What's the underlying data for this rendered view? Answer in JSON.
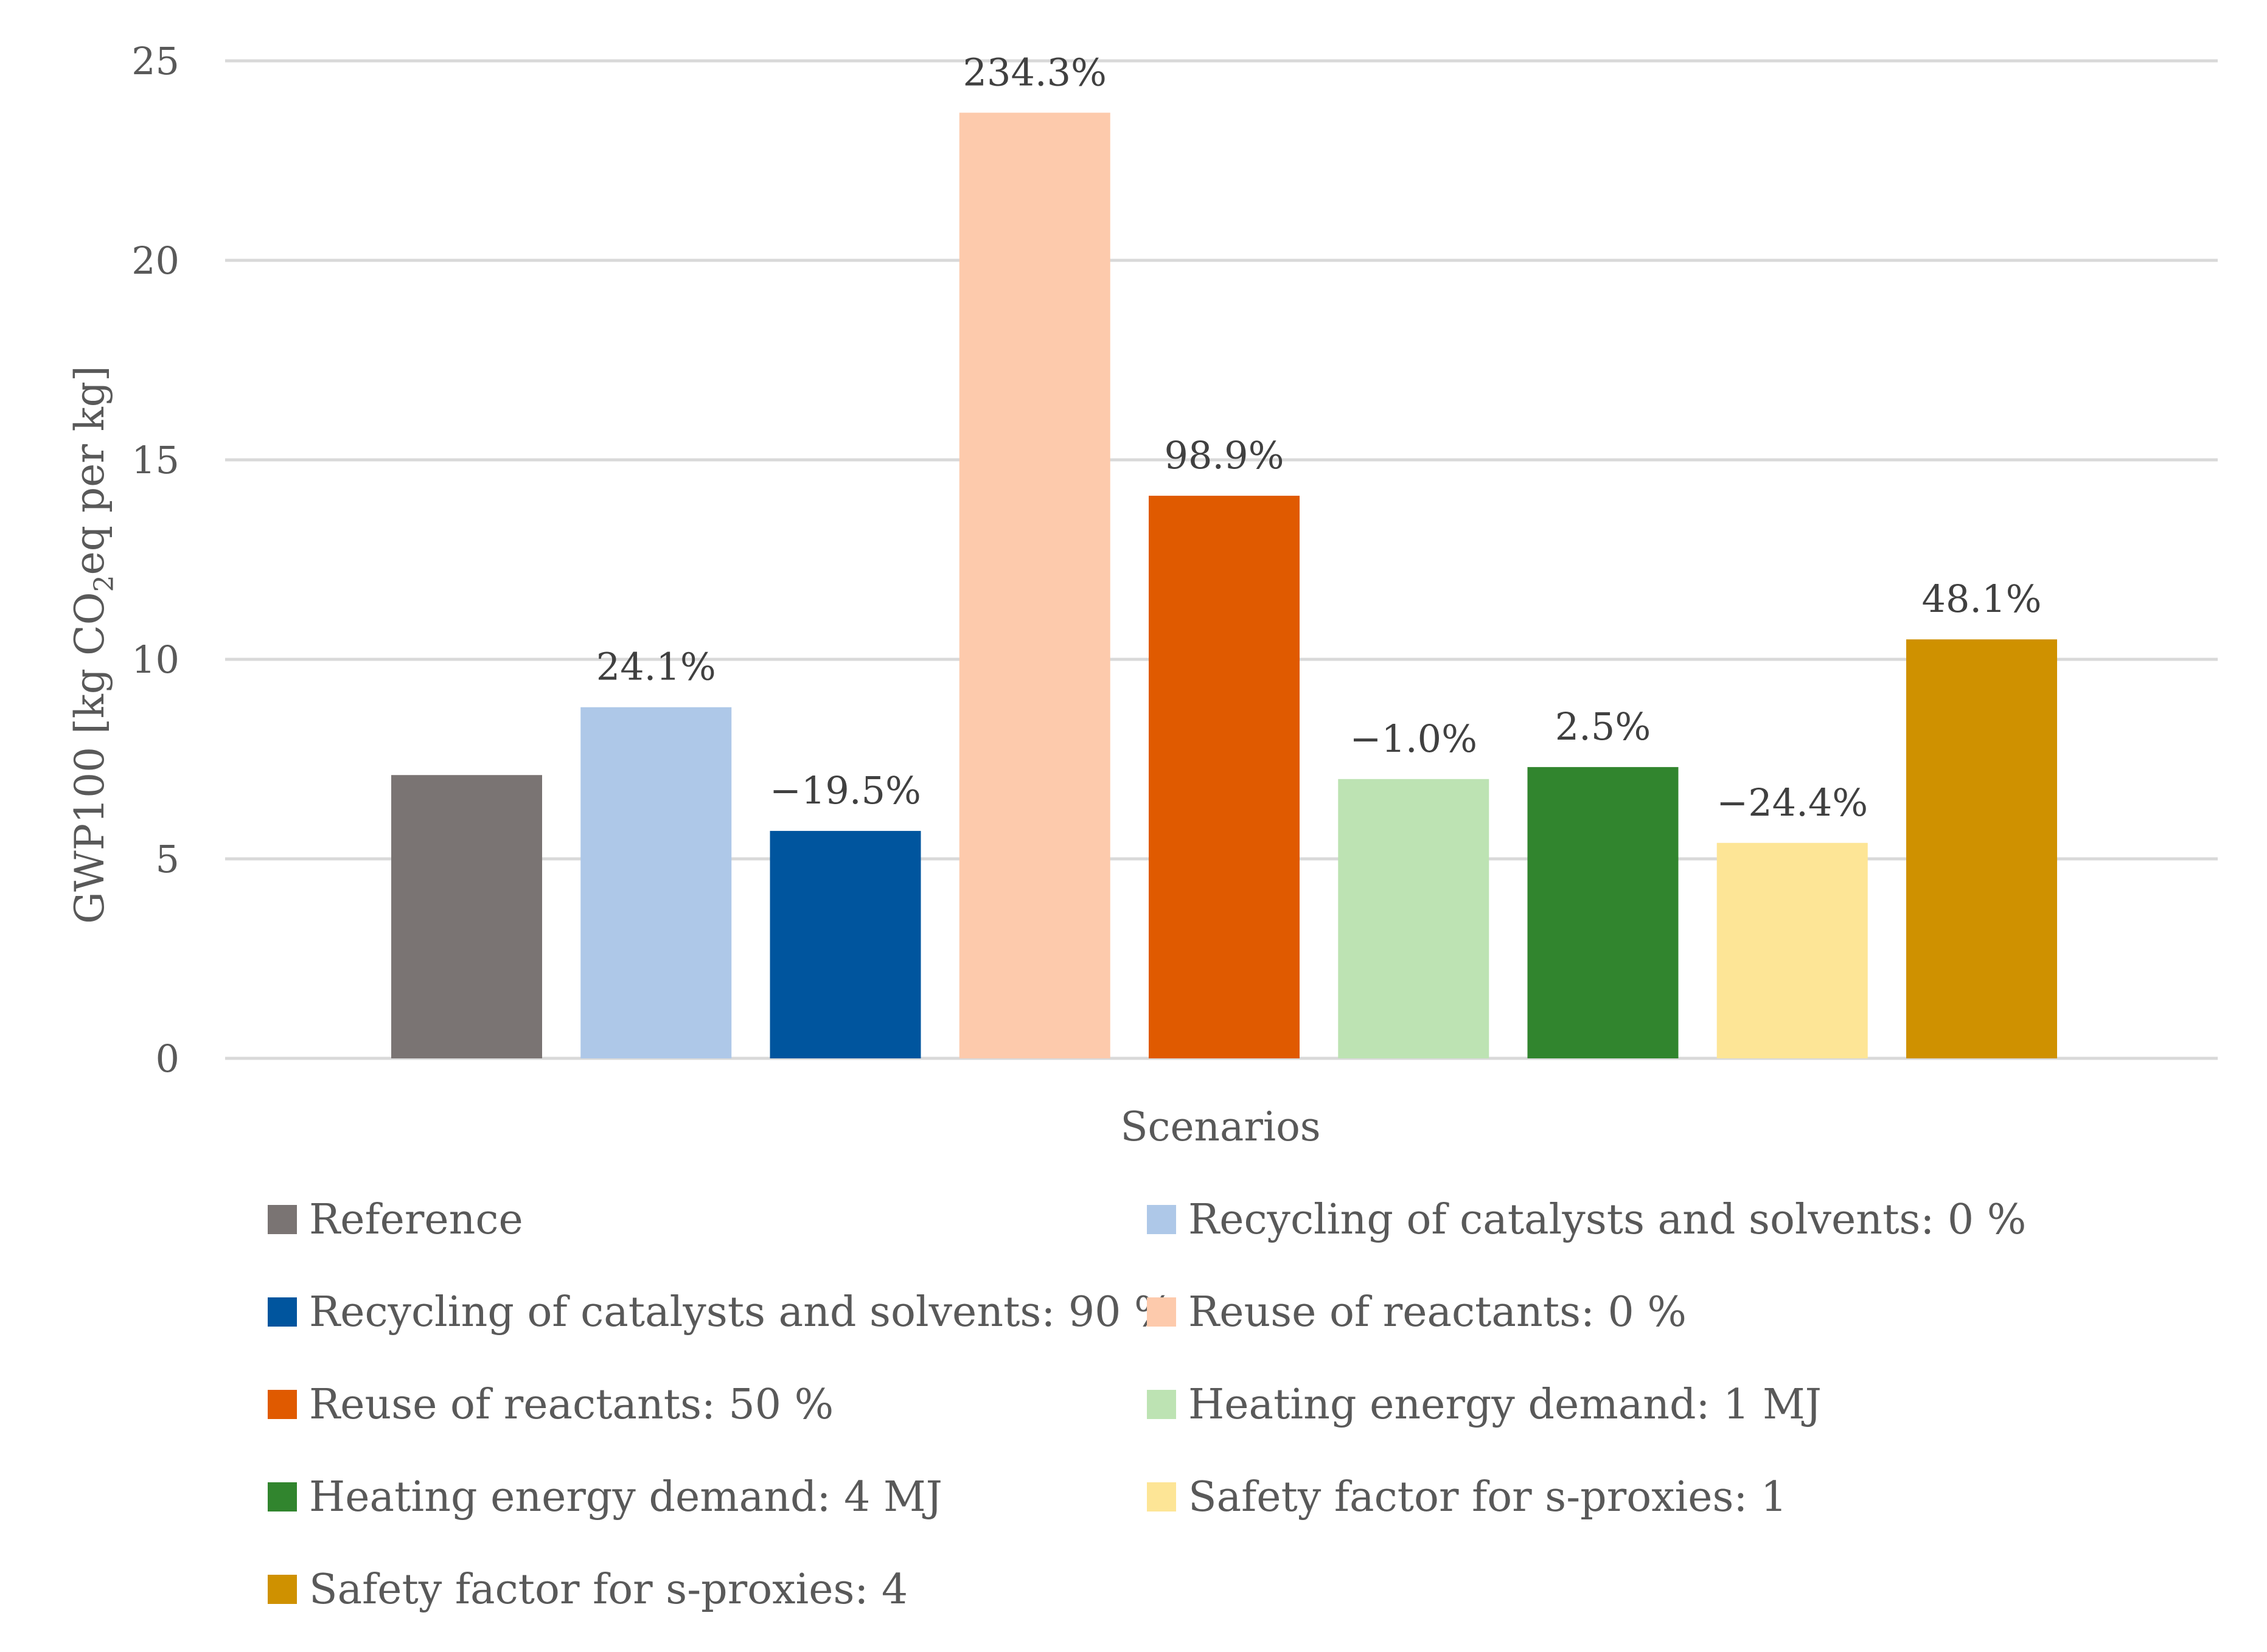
{
  "chart_data": {
    "type": "bar",
    "title": "",
    "xlabel": "Scenarios",
    "ylabel_parts": [
      "GWP100 [kg CO",
      "2",
      "eq per kg]"
    ],
    "ylim": [
      0,
      25
    ],
    "yticks": [
      0,
      5,
      10,
      15,
      20,
      25
    ],
    "grid": true,
    "legend_position": "bottom",
    "series": [
      {
        "name": "Reference",
        "value": 7.1,
        "label": "",
        "color": "#7a7473"
      },
      {
        "name": "Recycling of catalysts and solvents: 0 %",
        "value": 8.8,
        "label": "24.1%",
        "color": "#aec8e8"
      },
      {
        "name": "Recycling of catalysts and solvents: 90 %",
        "value": 5.7,
        "label": "−19.5%",
        "color": "#00559e"
      },
      {
        "name": "Reuse of reactants: 0 %",
        "value": 23.7,
        "label": "234.3%",
        "color": "#fdcaac"
      },
      {
        "name": "Reuse of reactants: 50 %",
        "value": 14.1,
        "label": "98.9%",
        "color": "#e05a00"
      },
      {
        "name": "Heating energy demand: 1 MJ",
        "value": 7.0,
        "label": "−1.0%",
        "color": "#bde3b3"
      },
      {
        "name": "Heating energy demand: 4 MJ",
        "value": 7.3,
        "label": "2.5%",
        "color": "#31852e"
      },
      {
        "name": "Safety factor for s-proxies: 1",
        "value": 5.4,
        "label": "−24.4%",
        "color": "#fde596"
      },
      {
        "name": "Safety factor for s-proxies: 4",
        "value": 10.5,
        "label": "48.1%",
        "color": "#cf9100"
      }
    ]
  }
}
